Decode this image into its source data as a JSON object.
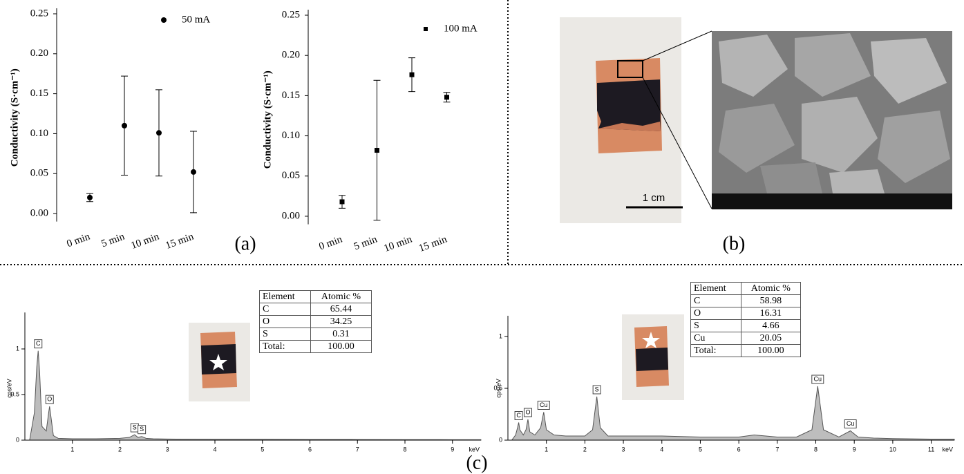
{
  "chart_data": [
    {
      "type": "errorbar",
      "ylabel": "Conductivity (S·cm⁻¹)",
      "categories": [
        "0 min",
        "5 min",
        "10 min",
        "15 min"
      ],
      "series": [
        {
          "name": "50 mA",
          "marker": "circle",
          "color": "#000000",
          "values": [
            0.02,
            0.11,
            0.101,
            0.052
          ],
          "errors": [
            0.005,
            0.062,
            0.054,
            0.051
          ]
        }
      ],
      "ylim": [
        -0.01,
        0.25
      ],
      "yticks": [
        {
          "value": 0,
          "label": "0.00"
        },
        {
          "value": 0.05,
          "label": "0.05"
        },
        {
          "value": 0.1,
          "label": "0.10"
        },
        {
          "value": 0.15,
          "label": "0.15"
        },
        {
          "value": 0.2,
          "label": "0.20"
        },
        {
          "value": 0.25,
          "label": "0.25"
        }
      ],
      "legend": "upper right"
    },
    {
      "type": "errorbar",
      "ylabel": "Conductivity (S·cm⁻¹)",
      "categories": [
        "0 min",
        "5 min",
        "10 min",
        "15 min"
      ],
      "series": [
        {
          "name": "100 mA",
          "marker": "square",
          "color": "#000000",
          "values": [
            0.018,
            0.082,
            0.176,
            0.148
          ],
          "errors": [
            0.008,
            0.087,
            0.021,
            0.006
          ]
        }
      ],
      "ylim": [
        -0.01,
        0.25
      ],
      "yticks": [
        {
          "value": 0,
          "label": "0.00"
        },
        {
          "value": 0.05,
          "label": "0.05"
        },
        {
          "value": 0.1,
          "label": "0.10"
        },
        {
          "value": 0.15,
          "label": "0.15"
        },
        {
          "value": 0.2,
          "label": "0.20"
        },
        {
          "value": 0.25,
          "label": "0.25"
        }
      ],
      "legend": "upper right"
    },
    {
      "type": "area",
      "ylabel": "cps/eV",
      "xlabel": "keV",
      "color": "#bdbdbd",
      "x": [
        0.1,
        0.2,
        0.25,
        0.28,
        0.31,
        0.36,
        0.45,
        0.5,
        0.52,
        0.55,
        0.6,
        0.7,
        1.0,
        1.5,
        2.0,
        2.2,
        2.31,
        2.38,
        2.46,
        2.55,
        2.7,
        3,
        4,
        5,
        6,
        7,
        8,
        9,
        9.6
      ],
      "values": [
        0,
        0.3,
        0.8,
        0.98,
        0.75,
        0.15,
        0.1,
        0.3,
        0.37,
        0.25,
        0.05,
        0.02,
        0.015,
        0.015,
        0.02,
        0.03,
        0.06,
        0.03,
        0.04,
        0.02,
        0.015,
        0.012,
        0.01,
        0.01,
        0.008,
        0.007,
        0.006,
        0.005,
        0.005
      ],
      "peaks": [
        {
          "label": "C",
          "x": 0.28
        },
        {
          "label": "O",
          "x": 0.52
        },
        {
          "label": "S",
          "x": 2.31
        },
        {
          "label": "S",
          "x": 2.46
        }
      ],
      "xlim": [
        0,
        9.6
      ],
      "xticks": [
        1,
        2,
        3,
        4,
        5,
        6,
        7,
        8,
        9
      ],
      "ylim": [
        0,
        1.4
      ],
      "yticks": [
        0,
        0.5,
        1
      ]
    },
    {
      "type": "area",
      "ylabel": "cps/eV",
      "xlabel": "keV",
      "color": "#bdbdbd",
      "x": [
        0.1,
        0.2,
        0.25,
        0.28,
        0.31,
        0.4,
        0.47,
        0.52,
        0.57,
        0.7,
        0.85,
        0.93,
        1.0,
        1.2,
        1.5,
        2.0,
        2.2,
        2.31,
        2.4,
        2.6,
        3,
        4,
        5,
        6,
        6.4,
        7,
        7.5,
        7.9,
        8.05,
        8.2,
        8.6,
        8.9,
        9.1,
        9.5,
        10,
        11,
        11.6
      ],
      "values": [
        0,
        0.05,
        0.12,
        0.17,
        0.1,
        0.05,
        0.1,
        0.2,
        0.08,
        0.05,
        0.12,
        0.27,
        0.1,
        0.05,
        0.04,
        0.04,
        0.1,
        0.42,
        0.12,
        0.04,
        0.04,
        0.04,
        0.03,
        0.03,
        0.05,
        0.03,
        0.03,
        0.1,
        0.52,
        0.1,
        0.03,
        0.09,
        0.03,
        0.02,
        0.015,
        0.01,
        0.01
      ],
      "peaks": [
        {
          "label": "C",
          "x": 0.28
        },
        {
          "label": "O",
          "x": 0.52
        },
        {
          "label": "Cu",
          "x": 0.93
        },
        {
          "label": "S",
          "x": 2.31
        },
        {
          "label": "Cu",
          "x": 8.05
        },
        {
          "label": "Cu",
          "x": 8.9
        }
      ],
      "xlim": [
        0,
        11.6
      ],
      "xticks": [
        1,
        2,
        3,
        4,
        5,
        6,
        7,
        8,
        9,
        10,
        11
      ],
      "ylim": [
        0,
        1.2
      ],
      "yticks": [
        0,
        0.5,
        1
      ]
    }
  ],
  "panel_labels": [
    "(a)",
    "(b)",
    "(c)"
  ],
  "scale_bar": "1 cm",
  "tables": [
    {
      "header": [
        "Element",
        "Atomic %"
      ],
      "rows": [
        [
          "C",
          "65.44"
        ],
        [
          "O",
          "34.25"
        ],
        [
          "S",
          "0.31"
        ],
        [
          "Total:",
          "100.00"
        ]
      ]
    },
    {
      "header": [
        "Element",
        "Atomic %"
      ],
      "rows": [
        [
          "C",
          "58.98"
        ],
        [
          "O",
          "16.31"
        ],
        [
          "S",
          "4.66"
        ],
        [
          "Cu",
          "20.05"
        ],
        [
          "Total:",
          "100.00"
        ]
      ]
    }
  ]
}
